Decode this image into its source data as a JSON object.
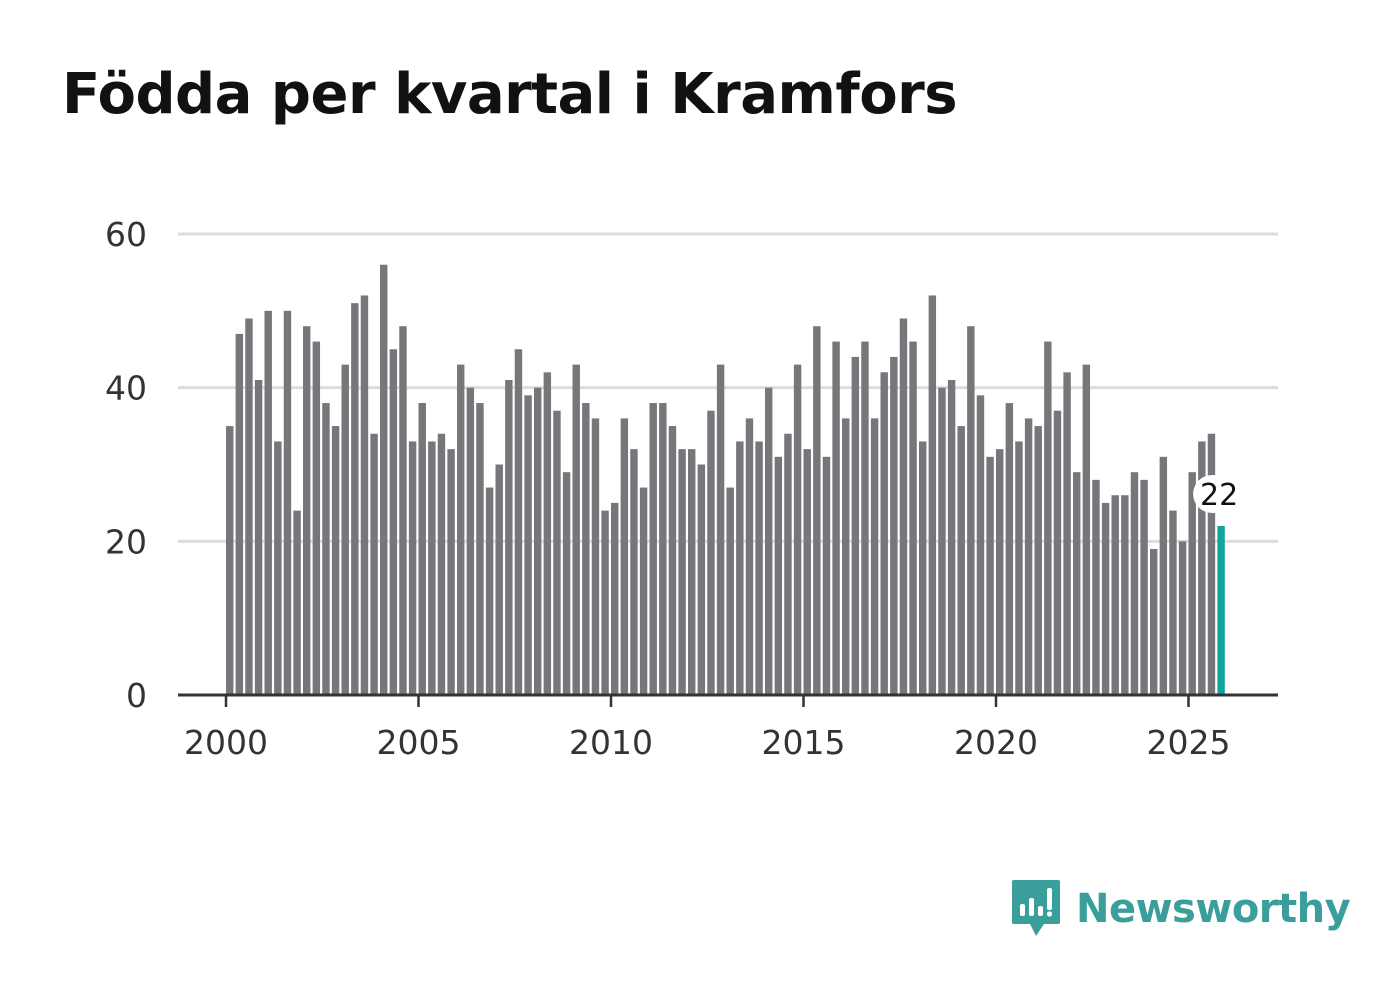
{
  "chart_data": {
    "type": "bar",
    "title": "Födda per kvartal i Kramfors",
    "xlabel": "",
    "ylabel": "",
    "ylim": [
      0,
      60
    ],
    "yticks": [
      0,
      20,
      40,
      60
    ],
    "xticks": [
      "2000",
      "2005",
      "2010",
      "2015",
      "2020",
      "2025"
    ],
    "start_year": 2000,
    "values": [
      35,
      47,
      49,
      41,
      50,
      33,
      50,
      24,
      48,
      46,
      38,
      35,
      43,
      51,
      52,
      34,
      56,
      45,
      48,
      33,
      38,
      33,
      34,
      32,
      43,
      40,
      38,
      27,
      30,
      41,
      45,
      39,
      40,
      42,
      37,
      29,
      43,
      38,
      36,
      24,
      25,
      36,
      32,
      27,
      38,
      38,
      35,
      32,
      32,
      30,
      37,
      43,
      27,
      33,
      36,
      33,
      40,
      31,
      34,
      43,
      32,
      48,
      31,
      46,
      36,
      44,
      46,
      36,
      42,
      44,
      49,
      46,
      33,
      52,
      40,
      41,
      35,
      48,
      39,
      31,
      32,
      38,
      33,
      36,
      35,
      46,
      37,
      42,
      29,
      43,
      28,
      25,
      26,
      26,
      29,
      28,
      19,
      31,
      24,
      20,
      29,
      33,
      34,
      22
    ],
    "highlight_index": 103,
    "highlight_label": "22",
    "bar_color": "#77767b",
    "highlight_color": "#14a39a",
    "grid": true
  },
  "brand": {
    "name": "Newsworthy",
    "color": "#3a9e9b"
  }
}
